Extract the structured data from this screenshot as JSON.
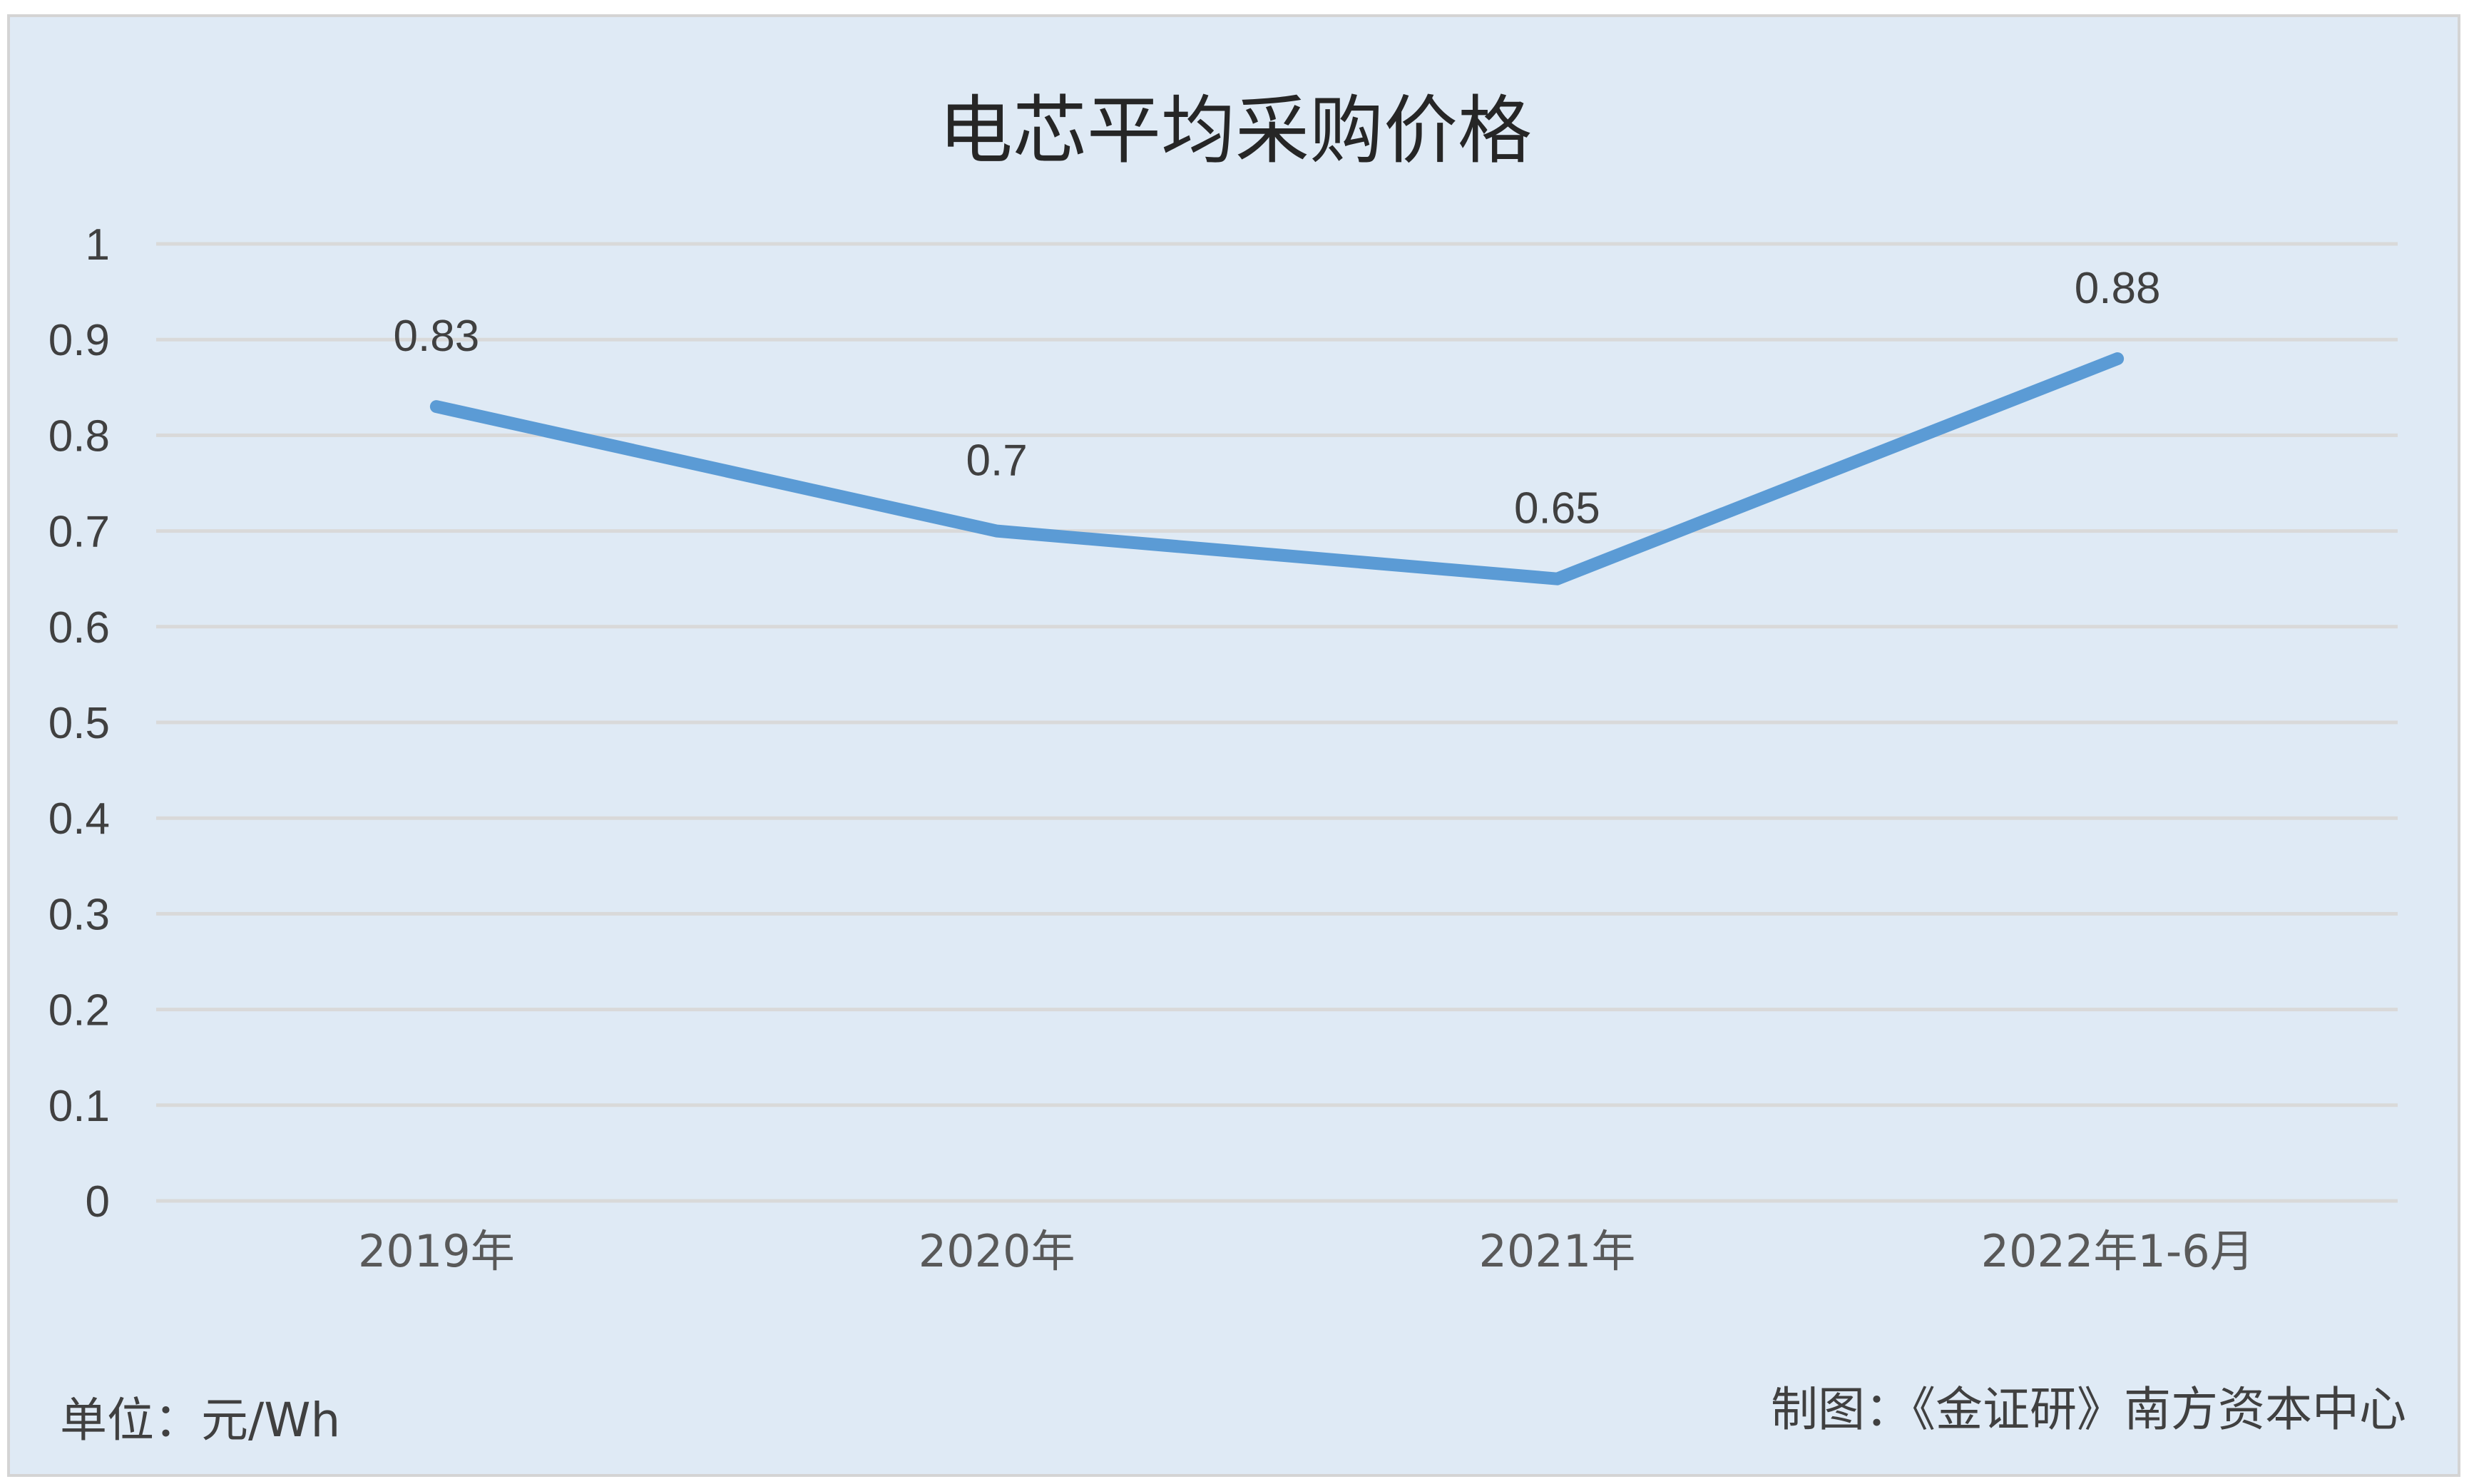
{
  "chart_data": {
    "type": "line",
    "title": "电芯平均采购价格",
    "categories": [
      "2019年",
      "2020年",
      "2021年",
      "2022年1-6月"
    ],
    "series": [
      {
        "values": [
          0.83,
          0.7,
          0.65,
          0.88
        ],
        "color": "#5b9bd5"
      }
    ],
    "data_labels": [
      "0.83",
      "0.7",
      "0.65",
      "0.88"
    ],
    "y_ticks": [
      "0",
      "0.1",
      "0.2",
      "0.3",
      "0.4",
      "0.5",
      "0.6",
      "0.7",
      "0.8",
      "0.9",
      "1"
    ],
    "ylim": [
      0,
      1
    ],
    "grid": true,
    "legend": "none"
  },
  "unit_note": "单位：元/Wh",
  "source_note": "制图：《金证研》南方资本中心",
  "colors": {
    "background": "#dfeaf5",
    "gridline": "#d9d9d9",
    "series": "#5b9bd5"
  }
}
